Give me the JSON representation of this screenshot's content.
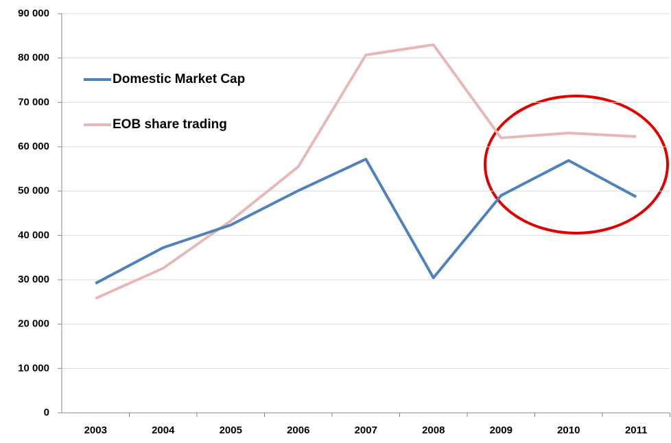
{
  "chart_data": {
    "type": "line",
    "categories": [
      "2003",
      "2004",
      "2005",
      "2006",
      "2007",
      "2008",
      "2009",
      "2010",
      "2011"
    ],
    "series": [
      {
        "name": "Domestic Market Cap",
        "color": "#4f81bd",
        "values": [
          29200,
          37250,
          42350,
          50100,
          57200,
          30450,
          49000,
          56900,
          48700
        ]
      },
      {
        "name": "EOB share trading",
        "color": "#e6b9b8",
        "values": [
          25800,
          32600,
          43300,
          55500,
          80700,
          83000,
          62000,
          63100,
          62300
        ]
      }
    ],
    "ylim": [
      0,
      90000
    ],
    "yticks": [
      {
        "value": 0,
        "label": "0"
      },
      {
        "value": 10000,
        "label": "10 000"
      },
      {
        "value": 20000,
        "label": "20 000"
      },
      {
        "value": 30000,
        "label": "30 000"
      },
      {
        "value": 40000,
        "label": "40 000"
      },
      {
        "value": 50000,
        "label": "50 000"
      },
      {
        "value": 60000,
        "label": "60 000"
      },
      {
        "value": 70000,
        "label": "70 000"
      },
      {
        "value": 80000,
        "label": "80 000"
      },
      {
        "value": 90000,
        "label": "90 000"
      }
    ],
    "grid": true,
    "legend": "upper left"
  }
}
